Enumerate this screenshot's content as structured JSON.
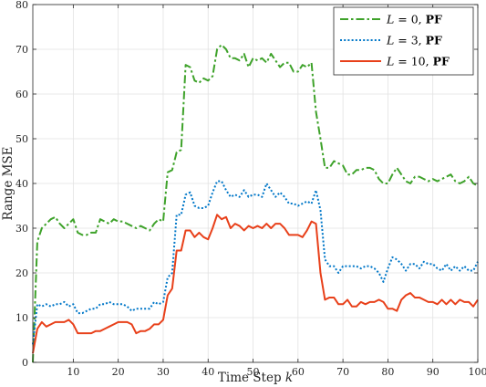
{
  "chart_data": {
    "type": "line",
    "xlabel_text": "Time Step ",
    "xlabel_var": "k",
    "ylabel": "Range MSE",
    "xlim": [
      1,
      100
    ],
    "ylim": [
      0,
      80
    ],
    "xticks": [
      "10",
      "20",
      "30",
      "40",
      "50",
      "60",
      "70",
      "80",
      "90",
      "100"
    ],
    "yticks": [
      "0",
      "10",
      "20",
      "30",
      "40",
      "50",
      "60",
      "70",
      "80"
    ],
    "grid": true,
    "legend_position": "top-right",
    "x": [
      1,
      2,
      3,
      4,
      5,
      6,
      7,
      8,
      9,
      10,
      11,
      12,
      13,
      14,
      15,
      16,
      17,
      18,
      19,
      20,
      21,
      22,
      23,
      24,
      25,
      26,
      27,
      28,
      29,
      30,
      31,
      32,
      33,
      34,
      35,
      36,
      37,
      38,
      39,
      40,
      41,
      42,
      43,
      44,
      45,
      46,
      47,
      48,
      49,
      50,
      51,
      52,
      53,
      54,
      55,
      56,
      57,
      58,
      59,
      60,
      61,
      62,
      63,
      64,
      65,
      66,
      67,
      68,
      69,
      70,
      71,
      72,
      73,
      74,
      75,
      76,
      77,
      78,
      79,
      80,
      81,
      82,
      83,
      84,
      85,
      86,
      87,
      88,
      89,
      90,
      91,
      92,
      93,
      94,
      95,
      96,
      97,
      98,
      99,
      100
    ],
    "series": [
      {
        "name_var": "L",
        "name_rest": " = 0, ",
        "name_bold": "PF",
        "color": "#3ea22a",
        "dash": "9,3,2.5,3",
        "values": [
          0,
          27,
          30,
          31,
          32,
          32.5,
          31,
          30,
          31,
          32,
          29,
          28.5,
          28.5,
          29,
          29,
          32,
          31.5,
          31,
          32,
          31.5,
          31.5,
          31,
          30.5,
          30,
          30.5,
          30,
          29.5,
          31,
          32,
          31.5,
          42.5,
          43,
          47,
          47.5,
          66.5,
          66,
          63,
          62.5,
          63.5,
          63,
          64,
          70,
          71,
          70,
          68,
          68,
          67.5,
          69,
          66,
          68,
          67.5,
          68,
          67,
          69,
          67.5,
          66,
          67,
          67,
          65,
          65,
          66.5,
          66,
          67,
          56,
          50,
          43.5,
          43.5,
          45,
          44.5,
          44,
          42,
          42,
          43,
          43,
          43.5,
          43.5,
          43,
          41,
          40,
          40,
          42,
          43.5,
          42,
          40.5,
          40,
          41.5,
          41.5,
          41,
          40.5,
          41,
          40.5,
          41,
          41.5,
          42,
          40.5,
          40,
          40.5,
          41.5,
          40,
          39.5
        ]
      },
      {
        "name_var": "L",
        "name_rest": " = 3, ",
        "name_bold": "PF",
        "color": "#0077c8",
        "dash": "2,2.2",
        "values": [
          4,
          13,
          12.5,
          13,
          12.5,
          13,
          13,
          13.5,
          12.5,
          13,
          11,
          11,
          11.5,
          12,
          12,
          13,
          13,
          13.5,
          13,
          13,
          13,
          12.5,
          11.5,
          12,
          12,
          12,
          12,
          13.5,
          13,
          13.5,
          19,
          20,
          33,
          33,
          37.5,
          38,
          35,
          34.5,
          34.5,
          35,
          38,
          40.5,
          40.5,
          38.5,
          37,
          37.5,
          37,
          38.5,
          37,
          37.5,
          37.5,
          37,
          40,
          38.5,
          37,
          38,
          37,
          35.5,
          35.5,
          35,
          35.5,
          36,
          35.5,
          38.5,
          34,
          23,
          21.5,
          21.5,
          20,
          21.5,
          21.5,
          21.5,
          21.5,
          21,
          21.5,
          21.5,
          21,
          20,
          18,
          21,
          23.5,
          23,
          22,
          20.5,
          22,
          22,
          21,
          22.5,
          22,
          22,
          21,
          20.5,
          22,
          20.5,
          21.5,
          20.5,
          21.5,
          20.5,
          20.5,
          22.5
        ]
      },
      {
        "name_var": "L",
        "name_rest": " = 10, ",
        "name_bold": "PF",
        "color": "#e8401a",
        "dash": "",
        "values": [
          2,
          7.5,
          9,
          8,
          8.5,
          9,
          9,
          9,
          9.5,
          8.5,
          6.5,
          6.5,
          6.5,
          6.5,
          7,
          7,
          7.5,
          8,
          8.5,
          9,
          9,
          9,
          8.5,
          6.5,
          7,
          7,
          7.5,
          8.5,
          8.5,
          9.5,
          15,
          16.5,
          25,
          25,
          29.5,
          29.5,
          28,
          29,
          28,
          27.5,
          30,
          33,
          32,
          32.5,
          30,
          31,
          30.5,
          29.5,
          30.5,
          30,
          30.5,
          30,
          31,
          30,
          31,
          31,
          30,
          28.5,
          28.5,
          28.5,
          28,
          29.5,
          31.5,
          31,
          20,
          14,
          14.5,
          14.5,
          13,
          13,
          14,
          12.5,
          12.5,
          13.5,
          13,
          13.5,
          13.5,
          14,
          13.5,
          12,
          12,
          11.5,
          14,
          15,
          15.5,
          14.5,
          14.5,
          14,
          13.5,
          13.5,
          13,
          14,
          13,
          14,
          13,
          14,
          13.5,
          13.5,
          12.5,
          14
        ]
      }
    ]
  }
}
